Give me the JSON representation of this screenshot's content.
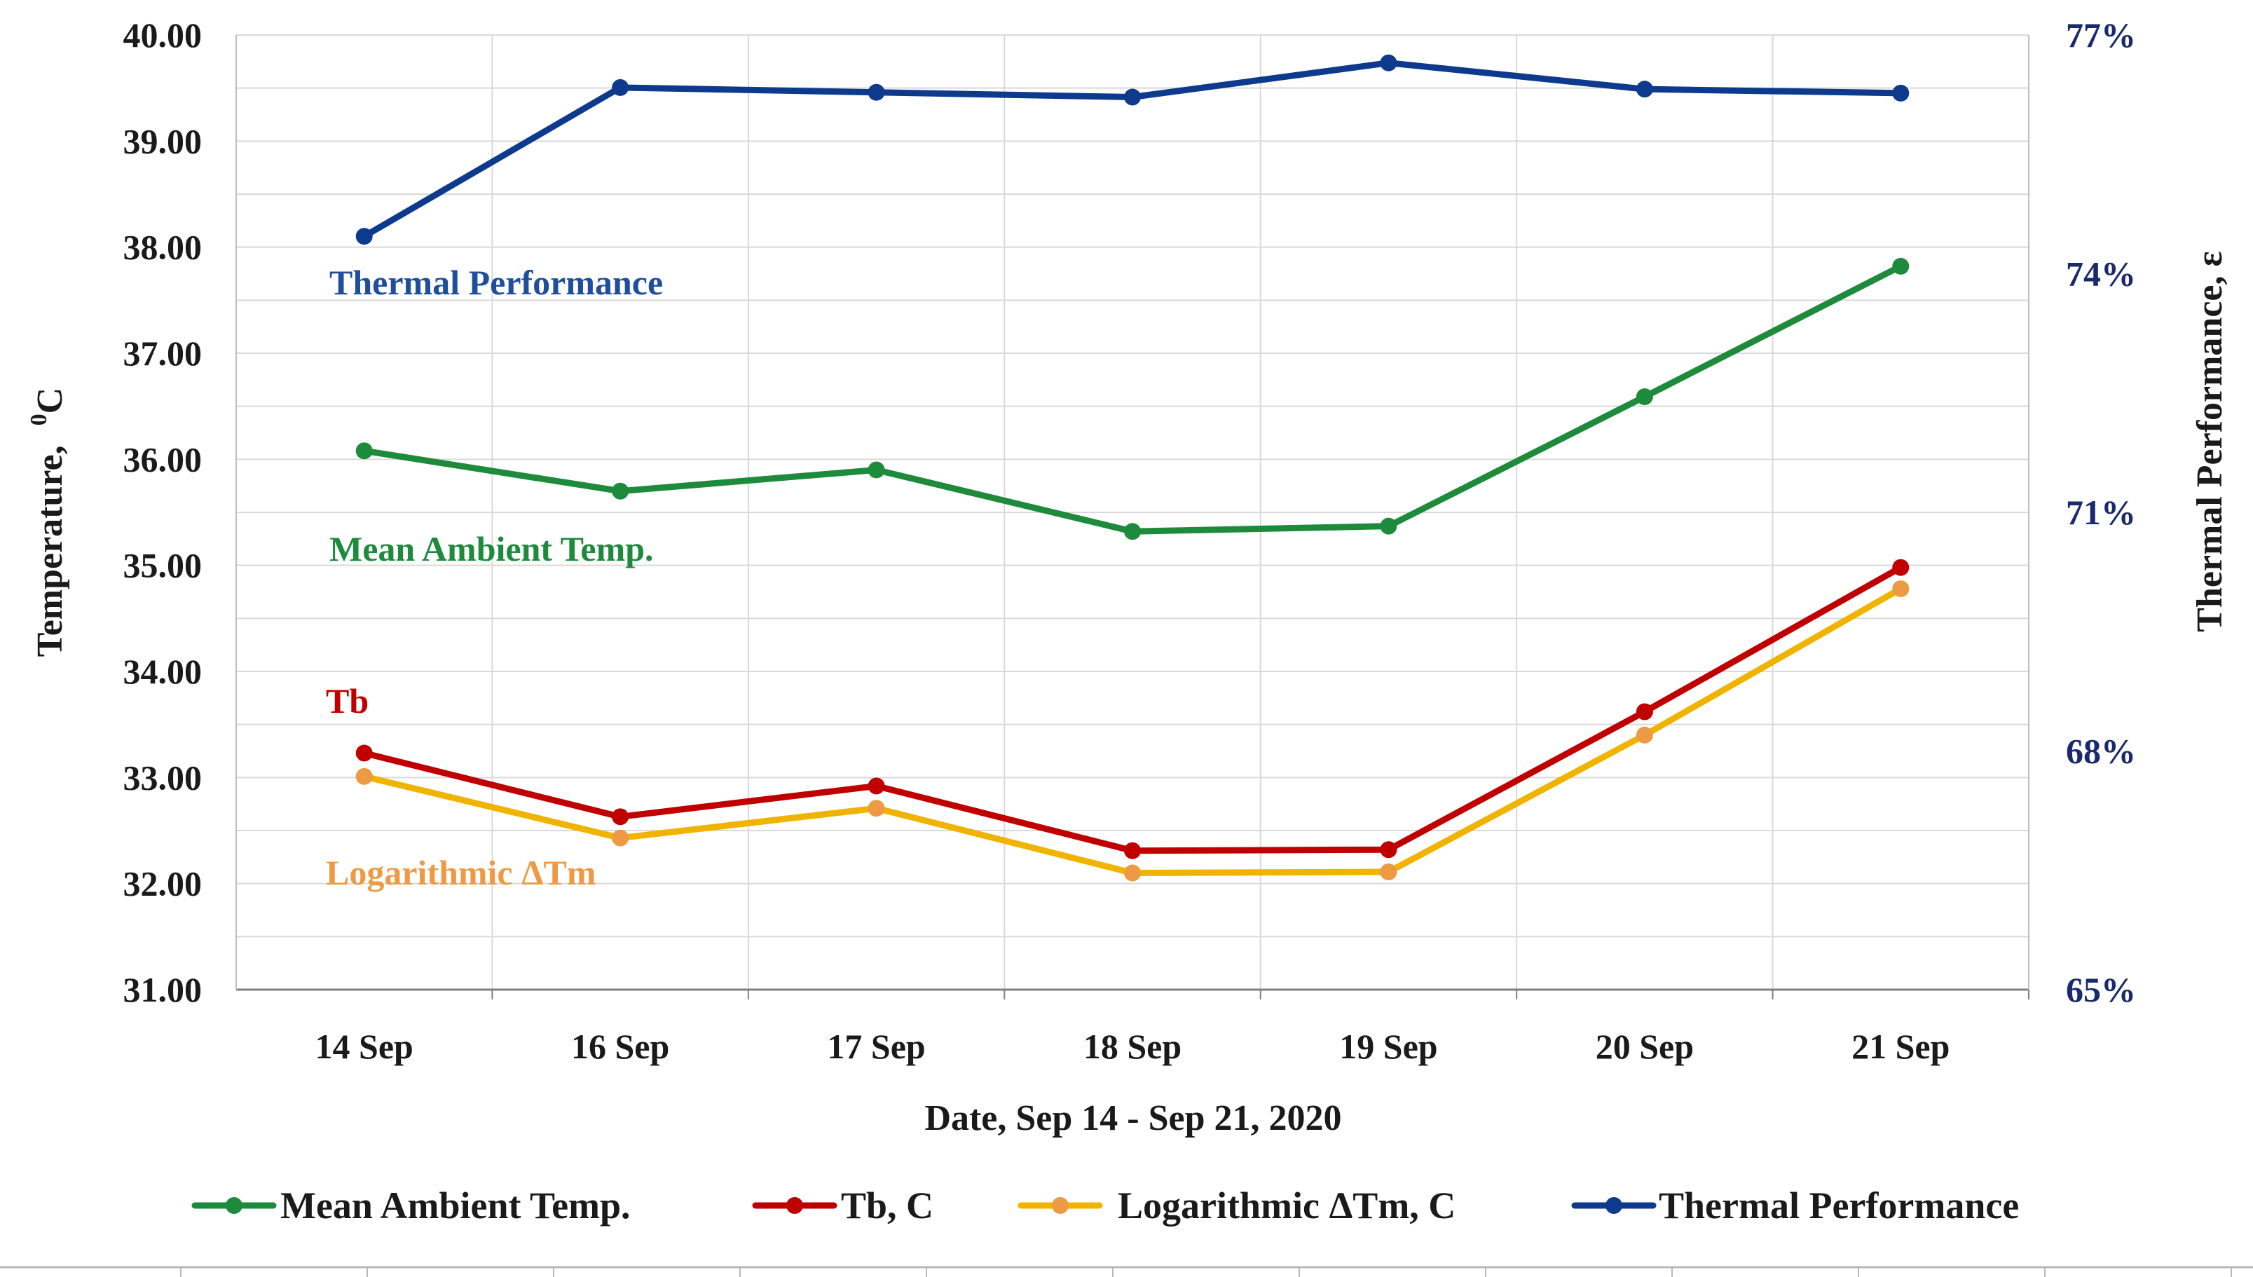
{
  "chart_data": {
    "type": "line",
    "categories": [
      "14 Sep",
      "16 Sep",
      "17 Sep",
      "18 Sep",
      "19 Sep",
      "20 Sep",
      "21 Sep"
    ],
    "xlabel": "Date, Sep 14 - Sep 21, 2020",
    "ylabel": "Temperature,",
    "ylabel_unit_sup": "0",
    "ylabel_unit": "C",
    "y2label": "Thermal Performance, ε",
    "ylim": [
      31,
      40
    ],
    "yticks": [
      "31.00",
      "32.00",
      "33.00",
      "34.00",
      "35.00",
      "36.00",
      "37.00",
      "38.00",
      "39.00",
      "40.00"
    ],
    "y2lim": [
      0.65,
      0.77
    ],
    "y2ticks": [
      "65%",
      "68%",
      "71%",
      "74%",
      "77%"
    ],
    "grid": true,
    "legend_position": "bottom",
    "series": [
      {
        "name": "Mean Ambient Temp.",
        "axis": "left",
        "color": "#1e8a3c",
        "marker_color": "#1e8a3c",
        "values": [
          36.08,
          35.7,
          35.9,
          35.32,
          35.37,
          36.59,
          37.82
        ]
      },
      {
        "name": "Tb, C",
        "axis": "left",
        "color": "#c00000",
        "marker_color": "#c00000",
        "values": [
          33.23,
          32.63,
          32.92,
          32.31,
          32.32,
          33.62,
          34.98
        ]
      },
      {
        "name": "Logarithmic ΔTm, C",
        "axis": "left",
        "color": "#f0b400",
        "marker_color": "#ee9a45",
        "values": [
          33.01,
          32.43,
          32.71,
          32.1,
          32.11,
          33.4,
          34.78
        ]
      },
      {
        "name": "Thermal Performance",
        "axis": "right",
        "color": "#0d3a8c",
        "marker_color": "#0d3a8c",
        "values": [
          0.7447,
          0.7634,
          0.7628,
          0.7622,
          0.7665,
          0.7632,
          0.7627
        ]
      }
    ],
    "annotations": [
      {
        "text": "Thermal Performance",
        "color": "#1f4e9c",
        "near_series": "Thermal Performance"
      },
      {
        "text": "Mean Ambient Temp.",
        "color": "#1e8a3c",
        "near_series": "Mean Ambient Temp."
      },
      {
        "text": "Tb",
        "color": "#c00000",
        "near_series": "Tb, C"
      },
      {
        "text": "Logarithmic ΔTm",
        "color": "#ee9a45",
        "near_series": "Logarithmic ΔTm, C"
      }
    ]
  }
}
